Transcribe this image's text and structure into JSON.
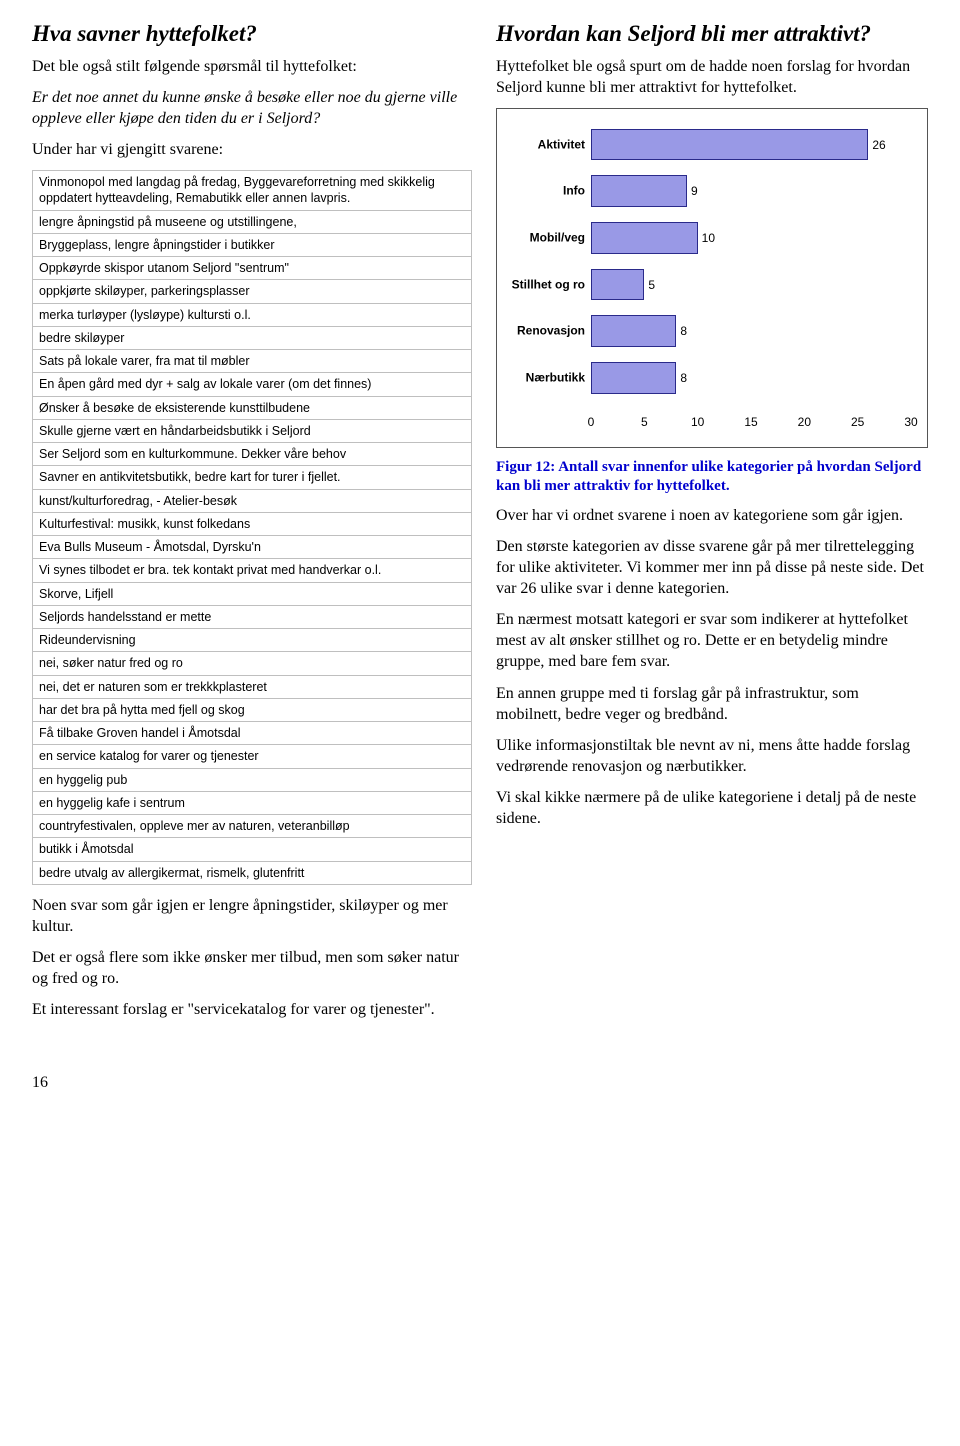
{
  "left": {
    "heading": "Hva savner hyttefolket?",
    "para1": "Det ble også stilt følgende spørsmål til hyttefolket:",
    "para2": "Er det noe annet du kunne ønske å besøke eller noe du gjerne ville oppleve eller kjøpe den tiden du er i Seljord?",
    "para3": "Under har vi gjengitt svarene:",
    "rows": [
      "Vinmonopol med langdag på fredag, Byggevareforretning med skikkelig oppdatert hytteavdeling, Remabutikk eller annen lavpris.",
      "lengre åpningstid på museene og utstillingene,",
      "Bryggeplass, lengre åpningstider i butikker",
      "Oppkøyrde skispor utanom Seljord \"sentrum\"",
      "oppkjørte skiløyper, parkeringsplasser",
      "merka turløyper (lysløype) kultursti o.l.",
      "bedre skiløyper",
      "Sats på lokale varer, fra mat til møbler",
      "En åpen gård med dyr + salg av lokale varer (om det finnes)",
      "Ønsker å besøke de eksisterende kunsttilbudene",
      "Skulle gjerne vært en håndarbeidsbutikk i Seljord",
      "Ser Seljord som en kulturkommune. Dekker våre behov",
      "Savner en antikvitetsbutikk, bedre kart for turer i fjellet.",
      "kunst/kulturforedrag, - Atelier-besøk",
      "Kulturfestival: musikk, kunst folkedans",
      "Eva Bulls Museum - Åmotsdal, Dyrsku'n",
      "Vi synes tilbodet er bra. tek kontakt privat med handverkar o.l.",
      "Skorve, Lifjell",
      "Seljords handelsstand er mette",
      "Rideundervisning",
      "nei, søker natur fred og ro",
      "nei, det er naturen som er trekkkplasteret",
      "har det bra på hytta med fjell og skog",
      "Få tilbake Groven handel i Åmotsdal",
      "en service katalog for varer og tjenester",
      "en hyggelig pub",
      "en hyggelig kafe i sentrum",
      "countryfestivalen, oppleve mer av naturen, veteranbilløp",
      "butikk i Åmotsdal",
      "bedre utvalg av allergikermat, rismelk, glutenfritt"
    ],
    "para4": "Noen svar som går igjen er lengre åpningstider, skiløyper og mer kultur.",
    "para5": "Det er også flere som ikke ønsker mer tilbud, men som søker natur og fred og ro.",
    "para6": "Et interessant forslag er \"servicekatalog for varer og tjenester\"."
  },
  "right": {
    "heading": "Hvordan kan Seljord bli mer attraktivt?",
    "para1": "Hyttefolket ble også spurt om de hadde noen forslag for hvordan Seljord kunne bli mer attraktivt for hyttefolket.",
    "chart": {
      "type": "bar-horizontal",
      "bar_color": "#9999e6",
      "bar_border": "#2a2a8a",
      "xmin": 0,
      "xmax": 30,
      "xtick_step": 5,
      "xticks": [
        0,
        5,
        10,
        15,
        20,
        25,
        30
      ],
      "label_fontsize": 12,
      "label_fontweight": "bold",
      "value_fontsize": 12,
      "background": "#ffffff",
      "border_color": "#555555",
      "categories": [
        "Aktivitet",
        "Info",
        "Mobil/veg",
        "Stillhet og ro",
        "Renovasjon",
        "Nærbutikk"
      ],
      "values": [
        26,
        9,
        10,
        5,
        8,
        8
      ]
    },
    "caption": "Figur 12: Antall svar innenfor ulike kategorier på hvordan Seljord kan bli mer attraktiv for hyttefolket.",
    "para2": "Over har vi ordnet svarene i noen av kategoriene som går igjen.",
    "para3": "Den største kategorien av disse svarene går på mer tilrettelegging for ulike aktiviteter.  Vi kommer mer inn på disse på neste side.  Det var 26 ulike svar i denne kategorien.",
    "para4": "En nærmest motsatt kategori er svar som indikerer at hyttefolket mest av alt ønsker stillhet og ro.  Dette er en betydelig mindre gruppe, med bare fem svar.",
    "para5": "En annen gruppe med ti forslag går på infrastruktur, som mobilnett, bedre veger og bredbånd.",
    "para6": "Ulike informasjonstiltak ble nevnt av ni, mens åtte hadde forslag vedrørende renovasjon og nærbutikker.",
    "para7": "Vi skal kikke nærmere på de ulike kategoriene i detalj på de neste sidene."
  },
  "page_number": "16"
}
